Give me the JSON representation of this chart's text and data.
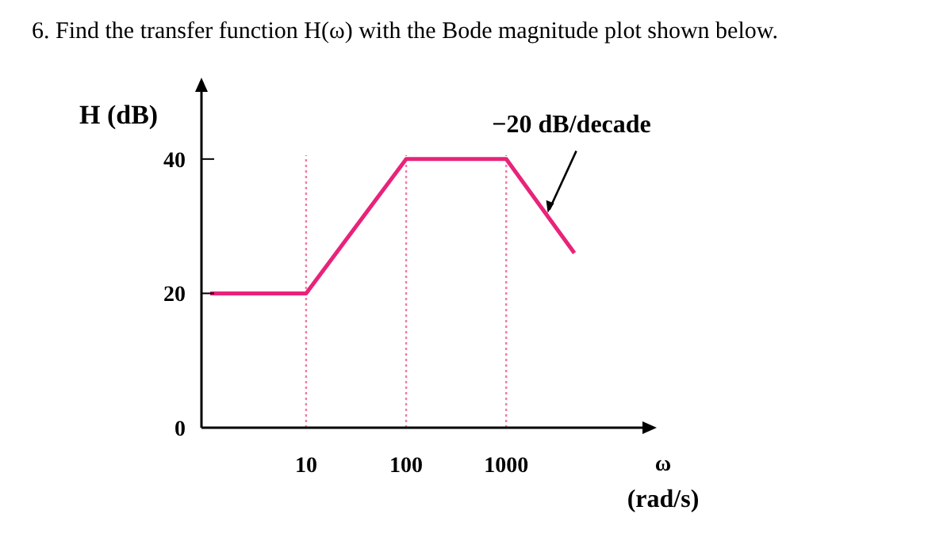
{
  "chart_data": {
    "type": "line",
    "title": "6.  Find the transfer function H(ω) with the Bode magnitude plot shown below.",
    "ylabel": "H (dB)",
    "xlabel": "ω (rad/s)",
    "log": "x",
    "x": [
      1.1,
      10,
      100,
      1000,
      4800
    ],
    "series": [
      {
        "color": "#e8237a",
        "values": [
          20,
          20,
          40,
          40,
          26
        ]
      }
    ],
    "xlim": [
      0.9,
      23000
    ],
    "ylim": [
      0,
      50
    ],
    "xticks": [
      10,
      100,
      1000
    ],
    "yticks": [
      0,
      20,
      40
    ],
    "grid": false,
    "marker": "none",
    "line_style": "solid",
    "ref_lines": [
      {
        "axis": "x",
        "value": 10,
        "color": "#f07aa8",
        "line_style": "dotted"
      },
      {
        "axis": "x",
        "value": 100,
        "color": "#f07aa8",
        "line_style": "dotted"
      },
      {
        "axis": "x",
        "value": 1000,
        "color": "#f07aa8",
        "line_style": "dotted"
      }
    ],
    "annotations": [
      {
        "text": "−20 dB/decade",
        "x": 2600,
        "y": 32
      }
    ]
  }
}
